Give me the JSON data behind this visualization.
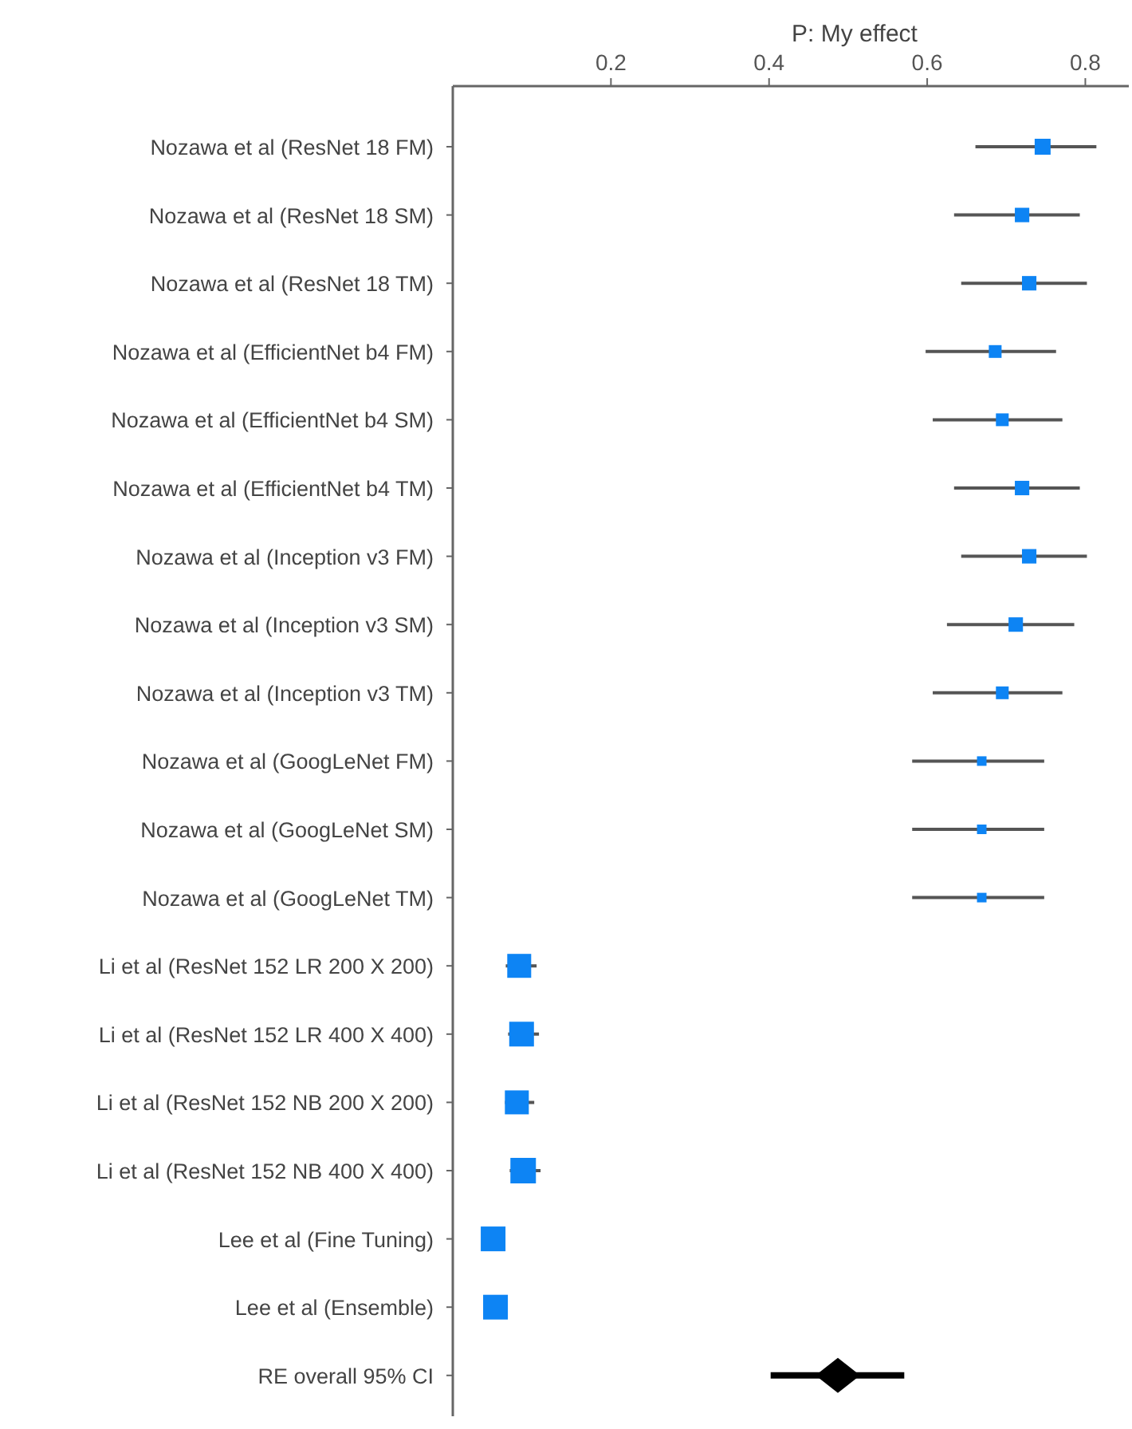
{
  "chart_data": {
    "type": "scatter",
    "orientation": "horizontal",
    "title": "P: My effect",
    "categories": [
      "Nozawa et al (ResNet 18 FM)",
      "Nozawa et al (ResNet 18  SM)",
      "Nozawa et al (ResNet 18 TM)",
      "Nozawa et al (EfficientNet b4 FM)",
      "Nozawa et al (EfficientNet b4 SM)",
      "Nozawa et al (EfficientNet b4 TM)",
      "Nozawa et al (Inception v3 FM)",
      "Nozawa et al (Inception v3 SM)",
      "Nozawa et al (Inception v3 TM)",
      "Nozawa et al (GoogLeNet FM)",
      "Nozawa et al (GoogLeNet SM)",
      "Nozawa et al (GoogLeNet TM)",
      "Li et al (ResNet 152 LR 200 X 200)",
      "Li et al (ResNet 152 LR 400 X 400)",
      "Li et al (ResNet 152 NB 200 X 200)",
      "Li et al (ResNet 152 NB 400 X 400)",
      "Lee et al (Fine Tuning)",
      "Lee et al (Ensemble)",
      "RE overall 95% CI"
    ],
    "series": [
      {
        "type": "bubble",
        "marker": "square",
        "color": "#0d84f4",
        "values": [
          0.746,
          0.72,
          0.729,
          0.686,
          0.695,
          0.72,
          0.729,
          0.712,
          0.695,
          0.669,
          0.669,
          0.669,
          0.084,
          0.087,
          0.081,
          0.089,
          0.051,
          0.054,
          null
        ],
        "errors": [
          [
            0.661,
            0.814
          ],
          [
            0.634,
            0.793
          ],
          [
            0.643,
            0.802
          ],
          [
            0.598,
            0.763
          ],
          [
            0.607,
            0.771
          ],
          [
            0.634,
            0.793
          ],
          [
            0.643,
            0.802
          ],
          [
            0.625,
            0.786
          ],
          [
            0.607,
            0.771
          ],
          [
            0.581,
            0.748
          ],
          [
            0.581,
            0.748
          ],
          [
            0.581,
            0.748
          ],
          [
            0.067,
            0.106
          ],
          [
            0.07,
            0.109
          ],
          [
            0.066,
            0.103
          ],
          [
            0.072,
            0.111
          ],
          null,
          null,
          null
        ],
        "sizes": [
          0.39,
          0.32,
          0.32,
          0.25,
          0.25,
          0.32,
          0.32,
          0.32,
          0.25,
          0.14,
          0.14,
          0.14,
          0.88,
          0.94,
          0.88,
          1,
          0.94,
          0.94,
          null
        ]
      },
      {
        "marker": "diamond",
        "color": "#000000",
        "values": [
          null,
          null,
          null,
          null,
          null,
          null,
          null,
          null,
          null,
          null,
          null,
          null,
          null,
          null,
          null,
          null,
          null,
          null,
          0.487
        ],
        "errors": [
          null,
          null,
          null,
          null,
          null,
          null,
          null,
          null,
          null,
          null,
          null,
          null,
          null,
          null,
          null,
          null,
          null,
          null,
          [
            0.402,
            0.571
          ]
        ]
      }
    ],
    "xlim": [
      0,
      0.855
    ],
    "xticks": [
      0.2,
      0.4,
      0.6,
      0.8
    ],
    "grid": false
  }
}
